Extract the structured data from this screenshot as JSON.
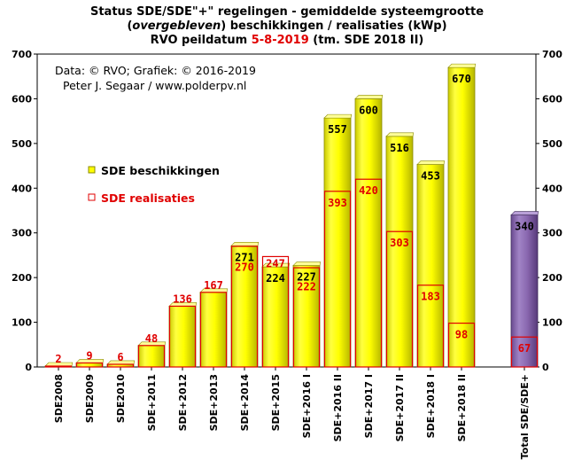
{
  "chart_data": {
    "type": "bar",
    "title_parts": [
      [
        {
          "t": "Status SDE/SDE\"+\"  regelingen  - gemiddelde  systeemgrootte",
          "c": "#000000"
        }
      ],
      [
        {
          "t": "(",
          "c": "#000000"
        },
        {
          "t": "overgebleven",
          "c": "#000000",
          "i": true
        },
        {
          "t": ") beschikkingen  / realisaties (kWp)",
          "c": "#000000"
        }
      ],
      [
        {
          "t": "RVO peildatum ",
          "c": "#000000"
        },
        {
          "t": "5-8-2019",
          "c": "#e00000"
        },
        {
          "t": " (tm. SDE  2018 II)",
          "c": "#000000"
        }
      ]
    ],
    "credits": [
      "Data: © RVO;  Grafiek:  © 2016-2019",
      "Peter J. Segaar / www.polderpv.nl"
    ],
    "ylim": [
      0,
      700
    ],
    "yticks": [
      "0",
      "100",
      "200",
      "300",
      "400",
      "500",
      "600",
      "700"
    ],
    "categories": [
      "SDE2008",
      "SDE2009",
      "SDE2010",
      "SDE+2011",
      "SDE+2012",
      "SDE+2013",
      "SDE+2014",
      "SDE+2015",
      "SDE+2016 I",
      "SDE+2016 II",
      "SDE+2017 I",
      "SDE+2017 II",
      "SDE+2018 I",
      "SDE+2018 II",
      "Total SDE/SDE+"
    ],
    "series": [
      {
        "name": "SDE beschikkingen",
        "color": "#ffff00",
        "label_color": "#000000",
        "values": [
          null,
          null,
          null,
          null,
          null,
          null,
          271,
          224,
          227,
          557,
          600,
          516,
          453,
          670,
          340
        ]
      },
      {
        "name": "SDE realisaties",
        "color": "#e00000",
        "label_color": "#e00000",
        "values": [
          2,
          9,
          6,
          48,
          136,
          167,
          270,
          247,
          222,
          393,
          420,
          303,
          183,
          98,
          67
        ]
      }
    ],
    "colors": {
      "total_bar": "#8a68b0",
      "realisatie_outline": "#e00000",
      "beschikking_fill": "#ffff00"
    },
    "legend_position": "left-middle",
    "grid": false
  }
}
